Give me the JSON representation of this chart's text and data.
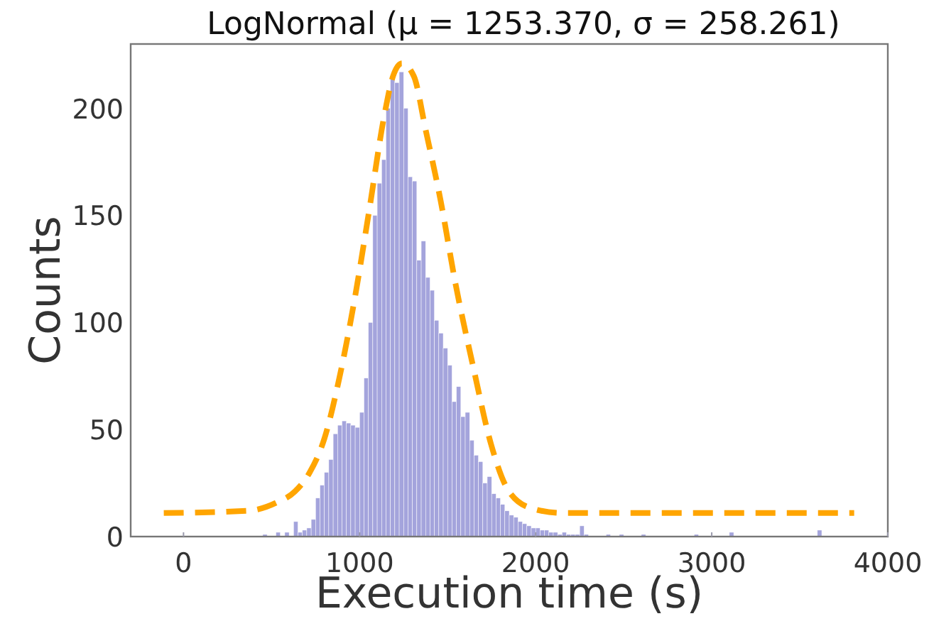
{
  "chart_data": {
    "type": "histogram",
    "title": "LogNormal (μ = 1253.370,  σ = 258.261)",
    "xlabel": "Execution time (s)",
    "ylabel": "Counts",
    "color": "#a4a4dc",
    "xlim": [
      -300,
      4000
    ],
    "ylim": [
      0,
      230
    ],
    "xticks": [
      0,
      1000,
      2000,
      3000,
      4000
    ],
    "yticks": [
      0,
      50,
      100,
      150,
      200
    ],
    "bins": [
      450,
      475,
      525,
      550,
      575,
      600,
      625,
      650,
      675,
      700,
      725,
      750,
      775,
      800,
      825,
      850,
      875,
      900,
      925,
      950,
      975,
      1000,
      1025,
      1050,
      1075,
      1100,
      1125,
      1150,
      1175,
      1200,
      1225,
      1250,
      1275,
      1300,
      1325,
      1350,
      1375,
      1400,
      1425,
      1450,
      1475,
      1500,
      1525,
      1550,
      1575,
      1600,
      1625,
      1650,
      1675,
      1700,
      1725,
      1750,
      1775,
      1800,
      1825,
      1850,
      1875,
      1900,
      1925,
      1950,
      1975,
      2000,
      2025,
      2050,
      2075,
      2100,
      2125,
      2150,
      2175,
      2200,
      2225,
      2250,
      2275,
      2300,
      2400,
      2425,
      2475,
      2500,
      2600,
      2625,
      2900,
      2925,
      3100,
      3125,
      3600,
      3625
    ],
    "values": [
      1,
      0,
      2,
      0,
      2,
      0,
      7,
      2,
      3,
      4,
      8,
      18,
      24,
      30,
      36,
      48,
      52,
      54,
      53,
      52,
      51,
      58,
      74,
      100,
      150,
      165,
      176,
      200,
      215,
      212,
      217,
      200,
      168,
      166,
      129,
      138,
      121,
      115,
      101,
      95,
      88,
      80,
      63,
      70,
      56,
      58,
      45,
      38,
      35,
      25,
      28,
      20,
      18,
      15,
      12,
      10,
      9,
      7,
      6,
      5,
      4,
      4,
      3,
      3,
      2,
      2,
      1,
      2,
      1,
      1,
      1,
      5,
      1,
      0,
      1,
      0,
      1,
      0,
      1,
      0,
      1,
      0,
      2,
      0,
      3
    ],
    "series": [
      {
        "type": "line",
        "color": "#ffa500",
        "line_style": "dashed",
        "x": [
          -112,
          362,
          531,
          632,
          717,
          801,
          885,
          970,
          1054,
          1139,
          1190,
          1240,
          1308,
          1375,
          1460,
          1545,
          1646,
          1747,
          1849,
          1984,
          2153,
          3809
        ],
        "values": [
          11,
          12,
          16,
          21,
          30,
          46,
          74,
          110,
          152,
          196,
          215,
          221,
          215,
          190,
          157,
          118,
          79,
          43,
          21,
          13,
          11,
          11
        ]
      }
    ]
  }
}
